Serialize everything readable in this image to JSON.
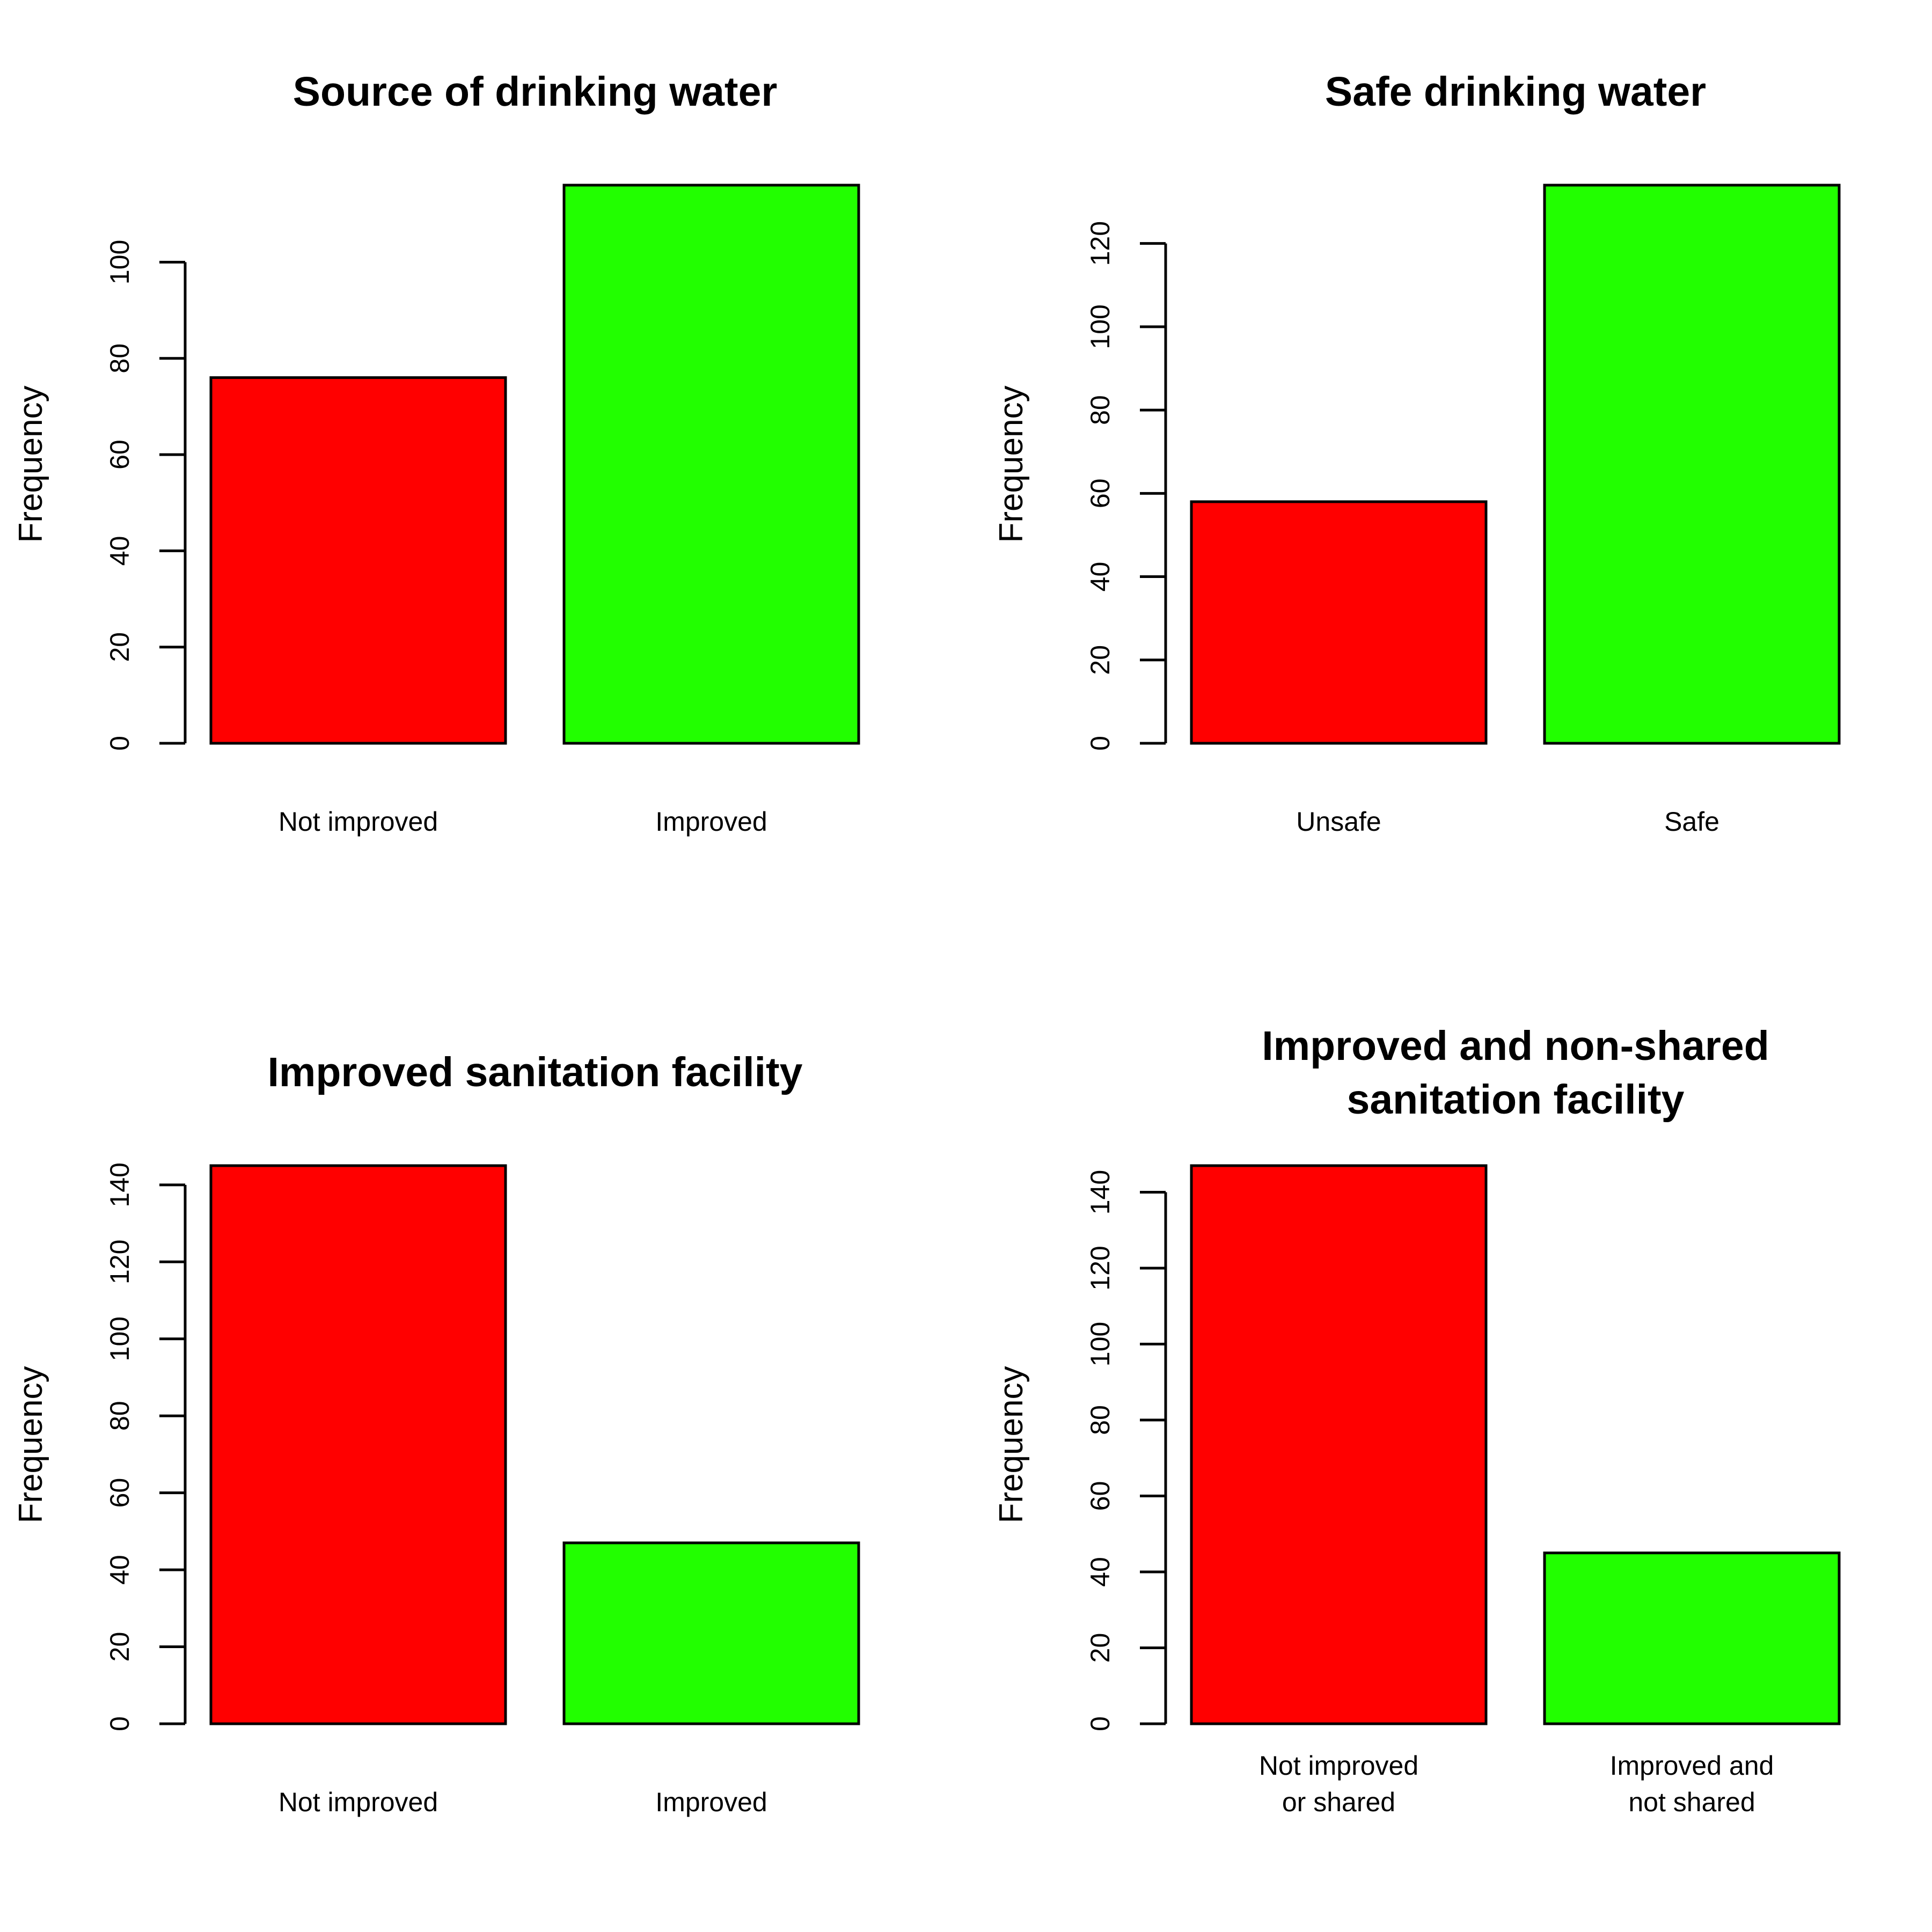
{
  "chart_data": [
    {
      "type": "bar",
      "title": "Source of drinking water",
      "ylabel": "Frequency",
      "xlabel": "",
      "categories": [
        "Not improved",
        "Improved"
      ],
      "values": [
        76,
        116
      ],
      "ylim": [
        0,
        116
      ],
      "yticks": [
        0,
        20,
        40,
        60,
        80,
        100
      ],
      "colors": [
        "#ff0000",
        "#22ff00"
      ],
      "grid": false
    },
    {
      "type": "bar",
      "title": "Safe drinking water",
      "ylabel": "Frequency",
      "xlabel": "",
      "categories": [
        "Unsafe",
        "Safe"
      ],
      "values": [
        58,
        134
      ],
      "ylim": [
        0,
        134
      ],
      "yticks": [
        0,
        20,
        40,
        60,
        80,
        100,
        120
      ],
      "colors": [
        "#ff0000",
        "#22ff00"
      ],
      "grid": false
    },
    {
      "type": "bar",
      "title": "Improved sanitation facility",
      "ylabel": "Frequency",
      "xlabel": "",
      "categories": [
        "Not improved",
        "Improved"
      ],
      "values": [
        145,
        47
      ],
      "ylim": [
        0,
        145
      ],
      "yticks": [
        0,
        20,
        40,
        60,
        80,
        100,
        120,
        140
      ],
      "colors": [
        "#ff0000",
        "#22ff00"
      ],
      "grid": false
    },
    {
      "type": "bar",
      "title": "Improved and non-shared\nsanitation facility",
      "ylabel": "Frequency",
      "xlabel": "",
      "categories": [
        "Not improved\nor shared",
        "Improved and\nnot shared"
      ],
      "values": [
        147,
        45
      ],
      "ylim": [
        0,
        147
      ],
      "yticks": [
        0,
        20,
        40,
        60,
        80,
        100,
        120,
        140
      ],
      "colors": [
        "#ff0000",
        "#22ff00"
      ],
      "grid": false
    }
  ]
}
